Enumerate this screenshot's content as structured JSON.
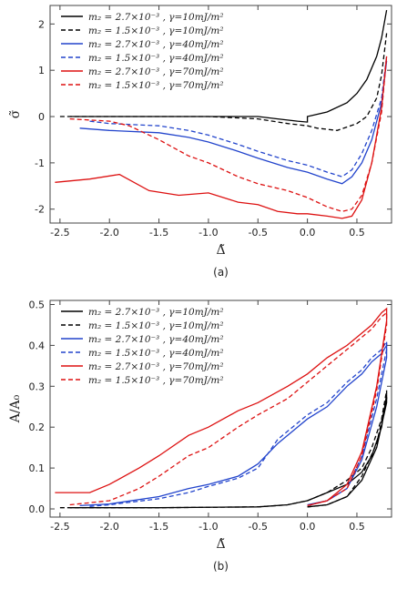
{
  "chart_data": [
    {
      "type": "line",
      "panel": "(a)",
      "xlabel": "Δ̃",
      "ylabel": "σ̃",
      "xlim": [
        -2.6,
        0.85
      ],
      "ylim": [
        -2.3,
        2.4
      ],
      "xticks": [
        "-2.5",
        "-2.0",
        "-1.5",
        "-1.0",
        "-0.5",
        "0.0",
        "0.5"
      ],
      "xtick_values": [
        -2.5,
        -2.0,
        -1.5,
        -1.0,
        -0.5,
        0.0,
        0.5
      ],
      "yticks": [
        "-2",
        "-1",
        "0",
        "1",
        "2"
      ],
      "ytick_values": [
        -2,
        -1,
        0,
        1,
        2
      ],
      "legend_position": "top-left",
      "series": [
        {
          "name": "m₂ = 2.7×10⁻³ , γ=10mJ/m²",
          "color": "#000000",
          "dash": "solid",
          "x": [
            -2.4,
            -2.0,
            -1.5,
            -1.0,
            -0.5,
            -0.3,
            -0.1,
            0.0,
            0.0,
            0.2,
            0.4,
            0.5,
            0.6,
            0.7,
            0.75,
            0.8
          ],
          "y": [
            0.0,
            0.0,
            0.0,
            0.0,
            0.0,
            -0.05,
            -0.1,
            -0.12,
            0.0,
            0.1,
            0.3,
            0.5,
            0.8,
            1.3,
            1.7,
            2.3
          ]
        },
        {
          "name": "m₂ = 1.5×10⁻³ , γ=10mJ/m²",
          "color": "#000000",
          "dash": "dashed",
          "x": [
            -2.5,
            -2.0,
            -1.5,
            -1.0,
            -0.5,
            -0.2,
            0.0,
            0.1,
            0.3,
            0.5,
            0.6,
            0.7,
            0.75,
            0.8
          ],
          "y": [
            0.0,
            0.0,
            0.0,
            0.0,
            -0.05,
            -0.15,
            -0.2,
            -0.25,
            -0.3,
            -0.15,
            0.0,
            0.4,
            0.9,
            1.8
          ]
        },
        {
          "name": "m₂ = 2.7×10⁻³ , γ=40mJ/m²",
          "color": "#2244cc",
          "dash": "solid",
          "x": [
            -2.3,
            -2.0,
            -1.5,
            -1.2,
            -1.0,
            -0.7,
            -0.5,
            -0.2,
            0.0,
            0.2,
            0.35,
            0.45,
            0.55,
            0.65,
            0.75,
            0.8
          ],
          "y": [
            -0.25,
            -0.3,
            -0.35,
            -0.45,
            -0.55,
            -0.75,
            -0.9,
            -1.1,
            -1.2,
            -1.35,
            -1.45,
            -1.3,
            -1.0,
            -0.5,
            0.3,
            1.2
          ]
        },
        {
          "name": "m₂ = 1.5×10⁻³ , γ=40mJ/m²",
          "color": "#2244cc",
          "dash": "dashed",
          "x": [
            -2.2,
            -2.0,
            -1.5,
            -1.2,
            -1.0,
            -0.7,
            -0.5,
            -0.2,
            0.0,
            0.2,
            0.35,
            0.45,
            0.55,
            0.65,
            0.75,
            0.8
          ],
          "y": [
            -0.1,
            -0.15,
            -0.2,
            -0.3,
            -0.4,
            -0.6,
            -0.75,
            -0.95,
            -1.05,
            -1.2,
            -1.3,
            -1.15,
            -0.8,
            -0.3,
            0.4,
            1.3
          ]
        },
        {
          "name": "m₂ = 2.7×10⁻³ , γ=70mJ/m²",
          "color": "#dd1111",
          "dash": "solid",
          "x": [
            -2.55,
            -2.2,
            -1.9,
            -1.6,
            -1.3,
            -1.0,
            -0.7,
            -0.5,
            -0.3,
            -0.1,
            0.0,
            0.2,
            0.35,
            0.45,
            0.55,
            0.65,
            0.75,
            0.8
          ],
          "y": [
            -1.42,
            -1.35,
            -1.25,
            -1.6,
            -1.7,
            -1.65,
            -1.85,
            -1.9,
            -2.05,
            -2.1,
            -2.1,
            -2.15,
            -2.2,
            -2.15,
            -1.8,
            -1.0,
            0.2,
            1.3
          ]
        },
        {
          "name": "m₂ = 1.5×10⁻³ , γ=70mJ/m²",
          "color": "#dd1111",
          "dash": "dashed",
          "x": [
            -2.4,
            -2.0,
            -1.8,
            -1.5,
            -1.2,
            -1.0,
            -0.7,
            -0.5,
            -0.2,
            0.0,
            0.2,
            0.35,
            0.45,
            0.55,
            0.65,
            0.75,
            0.8
          ],
          "y": [
            -0.05,
            -0.1,
            -0.2,
            -0.5,
            -0.85,
            -1.0,
            -1.3,
            -1.45,
            -1.6,
            -1.75,
            -1.95,
            -2.05,
            -2.0,
            -1.7,
            -1.0,
            0.1,
            1.3
          ]
        }
      ]
    },
    {
      "type": "line",
      "panel": "(b)",
      "xlabel": "Δ̃",
      "ylabel": "A/A₀",
      "xlim": [
        -2.6,
        0.85
      ],
      "ylim": [
        -0.02,
        0.51
      ],
      "xticks": [
        "-2.5",
        "-2.0",
        "-1.5",
        "-1.0",
        "-0.5",
        "0.0",
        "0.5"
      ],
      "xtick_values": [
        -2.5,
        -2.0,
        -1.5,
        -1.0,
        -0.5,
        0.0,
        0.5
      ],
      "yticks": [
        "0.0",
        "0.1",
        "0.2",
        "0.3",
        "0.4",
        "0.5"
      ],
      "ytick_values": [
        0.0,
        0.1,
        0.2,
        0.3,
        0.4,
        0.5
      ],
      "legend_position": "top-left",
      "series": [
        {
          "name": "m₂ = 2.7×10⁻³ , γ=10mJ/m²",
          "color": "#000000",
          "dash": "solid",
          "x": [
            -2.4,
            -1.5,
            -0.5,
            -0.2,
            0.0,
            0.2,
            0.4,
            0.55,
            0.65,
            0.75,
            0.8,
            0.8,
            0.7,
            0.55,
            0.4,
            0.2,
            0.0
          ],
          "y": [
            0.003,
            0.003,
            0.005,
            0.01,
            0.02,
            0.04,
            0.06,
            0.09,
            0.13,
            0.2,
            0.28,
            0.26,
            0.15,
            0.07,
            0.03,
            0.01,
            0.005
          ]
        },
        {
          "name": "m₂ = 1.5×10⁻³ , γ=10mJ/m²",
          "color": "#000000",
          "dash": "dashed",
          "x": [
            -2.5,
            -1.5,
            -0.5,
            -0.2,
            0.0,
            0.2,
            0.4,
            0.55,
            0.65,
            0.75,
            0.8,
            0.8,
            0.7,
            0.55,
            0.4,
            0.2,
            0.0
          ],
          "y": [
            0.003,
            0.003,
            0.005,
            0.01,
            0.02,
            0.04,
            0.07,
            0.1,
            0.15,
            0.22,
            0.29,
            0.27,
            0.16,
            0.08,
            0.03,
            0.01,
            0.005
          ]
        },
        {
          "name": "m₂ = 2.7×10⁻³ , γ=40mJ/m²",
          "color": "#2244cc",
          "dash": "solid",
          "x": [
            -2.3,
            -2.0,
            -1.5,
            -1.2,
            -1.0,
            -0.7,
            -0.5,
            -0.3,
            -0.1,
            0.0,
            0.2,
            0.4,
            0.55,
            0.65,
            0.75,
            0.8,
            0.8,
            0.7,
            0.55,
            0.4,
            0.2,
            0.0
          ],
          "y": [
            0.008,
            0.012,
            0.03,
            0.05,
            0.06,
            0.08,
            0.11,
            0.16,
            0.2,
            0.22,
            0.25,
            0.3,
            0.33,
            0.36,
            0.38,
            0.4,
            0.37,
            0.25,
            0.12,
            0.05,
            0.02,
            0.01
          ]
        },
        {
          "name": "m₂ = 1.5×10⁻³ , γ=40mJ/m²",
          "color": "#2244cc",
          "dash": "dashed",
          "x": [
            -2.2,
            -2.0,
            -1.5,
            -1.2,
            -1.0,
            -0.7,
            -0.5,
            -0.3,
            -0.1,
            0.0,
            0.2,
            0.4,
            0.55,
            0.65,
            0.75,
            0.8,
            0.8,
            0.7,
            0.55,
            0.4,
            0.2,
            0.0
          ],
          "y": [
            0.006,
            0.01,
            0.025,
            0.04,
            0.055,
            0.075,
            0.1,
            0.17,
            0.21,
            0.23,
            0.26,
            0.31,
            0.34,
            0.37,
            0.39,
            0.41,
            0.39,
            0.27,
            0.13,
            0.05,
            0.02,
            0.008
          ]
        },
        {
          "name": "m₂ = 2.7×10⁻³ , γ=70mJ/m²",
          "color": "#dd1111",
          "dash": "solid",
          "x": [
            -2.55,
            -2.2,
            -2.0,
            -1.7,
            -1.5,
            -1.2,
            -1.0,
            -0.7,
            -0.5,
            -0.2,
            0.0,
            0.2,
            0.4,
            0.55,
            0.65,
            0.75,
            0.8,
            0.8,
            0.7,
            0.55,
            0.4,
            0.2,
            0.0
          ],
          "y": [
            0.04,
            0.04,
            0.06,
            0.1,
            0.13,
            0.18,
            0.2,
            0.24,
            0.26,
            0.3,
            0.33,
            0.37,
            0.4,
            0.43,
            0.45,
            0.48,
            0.49,
            0.46,
            0.3,
            0.14,
            0.06,
            0.02,
            0.008
          ]
        },
        {
          "name": "m₂ = 1.5×10⁻³ , γ=70mJ/m²",
          "color": "#dd1111",
          "dash": "dashed",
          "x": [
            -2.4,
            -2.0,
            -1.7,
            -1.5,
            -1.2,
            -1.0,
            -0.7,
            -0.5,
            -0.2,
            0.0,
            0.2,
            0.4,
            0.55,
            0.65,
            0.75,
            0.8,
            0.8,
            0.7,
            0.55,
            0.4,
            0.2,
            0.0
          ],
          "y": [
            0.01,
            0.02,
            0.05,
            0.08,
            0.13,
            0.15,
            0.2,
            0.23,
            0.27,
            0.31,
            0.35,
            0.39,
            0.42,
            0.44,
            0.47,
            0.48,
            0.45,
            0.29,
            0.13,
            0.05,
            0.02,
            0.008
          ]
        }
      ]
    }
  ]
}
